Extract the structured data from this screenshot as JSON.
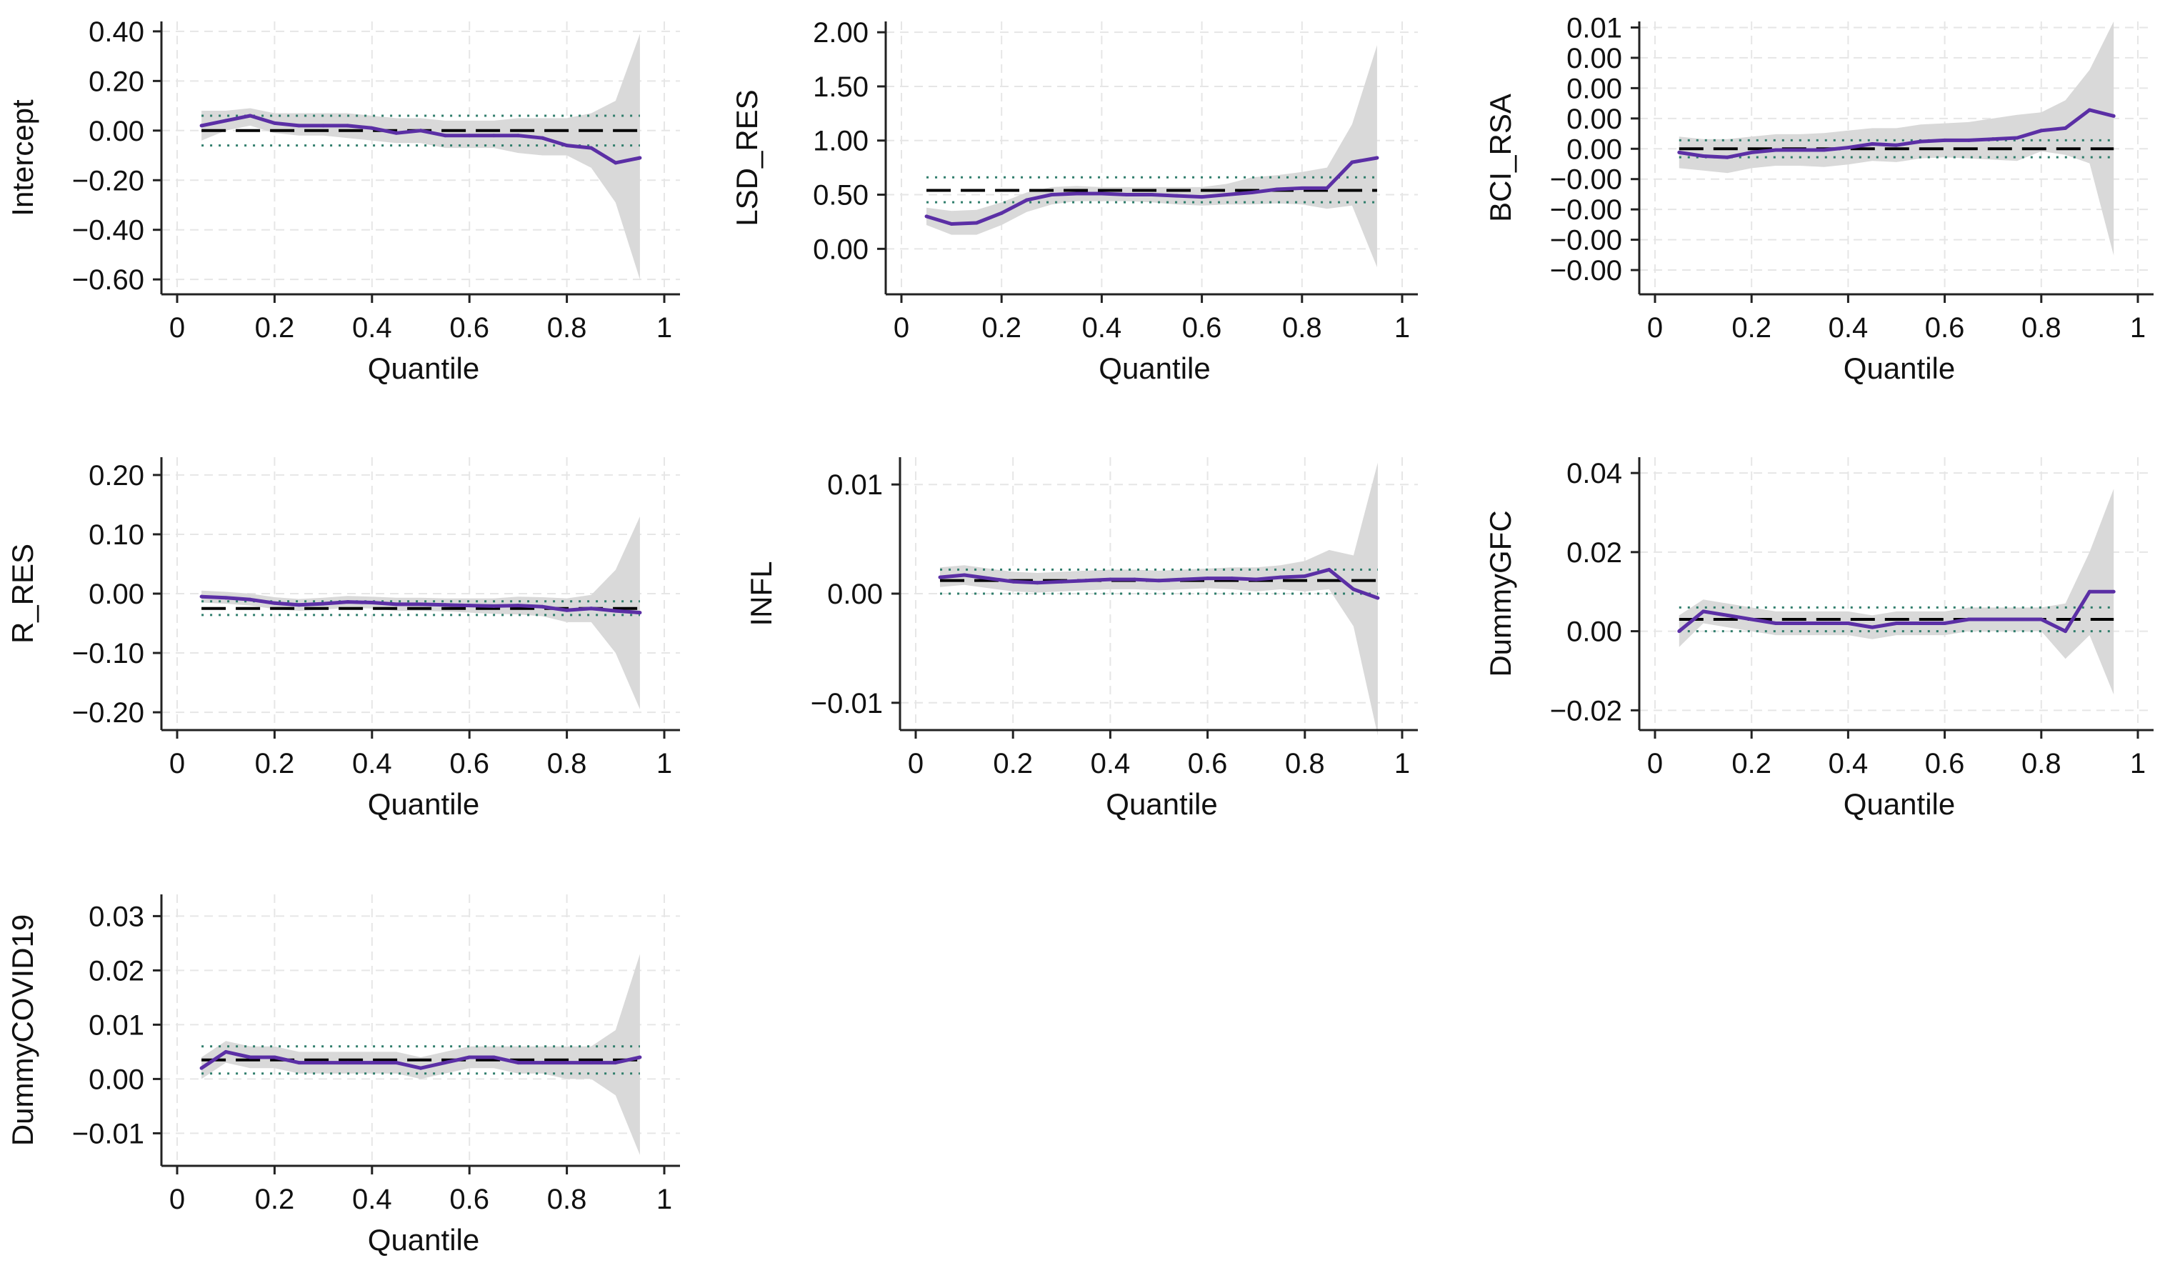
{
  "figure": {
    "xlabel": "Quantile",
    "x_ticks": [
      0,
      0.2,
      0.4,
      0.6,
      0.8,
      1
    ],
    "x_tick_labels": [
      "0",
      "0.2",
      "0.4",
      "0.6",
      "0.8",
      "1"
    ],
    "quantiles": [
      0.05,
      0.1,
      0.15,
      0.2,
      0.25,
      0.3,
      0.35,
      0.4,
      0.45,
      0.5,
      0.55,
      0.6,
      0.65,
      0.7,
      0.75,
      0.8,
      0.85,
      0.9,
      0.95
    ],
    "colors": {
      "quantile_line": "#5b2fa5",
      "ci_band": "#d9d9d9",
      "ols_line": "#000000",
      "ols_ci_line": "#2f7d6b",
      "grid": "#e6e6e6",
      "axis": "#222222"
    }
  },
  "chart_data": [
    {
      "type": "line",
      "title": "",
      "ylabel": "Intercept",
      "xlabel": "Quantile",
      "xlim": [
        0,
        1
      ],
      "ylim": [
        -0.66,
        0.44
      ],
      "y_ticks": [
        0.4,
        0.2,
        0.0,
        -0.2,
        -0.4,
        -0.6
      ],
      "y_tick_labels": [
        "0.40",
        "0.20",
        "0.00",
        "−0.20",
        "−0.40",
        "−0.60"
      ],
      "series": [
        {
          "name": "Quantile estimate",
          "values": [
            0.02,
            0.04,
            0.06,
            0.03,
            0.02,
            0.02,
            0.02,
            0.01,
            -0.01,
            0.0,
            -0.02,
            -0.02,
            -0.02,
            -0.02,
            -0.03,
            -0.06,
            -0.07,
            -0.13,
            -0.11
          ]
        },
        {
          "name": "CI upper",
          "values": [
            0.08,
            0.08,
            0.09,
            0.07,
            0.07,
            0.07,
            0.07,
            0.06,
            0.05,
            0.05,
            0.04,
            0.04,
            0.04,
            0.05,
            0.05,
            0.05,
            0.07,
            0.12,
            0.39
          ]
        },
        {
          "name": "CI lower",
          "values": [
            -0.04,
            0.0,
            0.02,
            -0.01,
            -0.02,
            -0.02,
            -0.03,
            -0.04,
            -0.05,
            -0.05,
            -0.07,
            -0.07,
            -0.07,
            -0.09,
            -0.1,
            -0.1,
            -0.15,
            -0.29,
            -0.6
          ]
        }
      ],
      "ols": {
        "coef": 0.0,
        "ci": [
          -0.06,
          0.06
        ]
      }
    },
    {
      "type": "line",
      "title": "",
      "ylabel": "LSD_RES",
      "xlabel": "Quantile",
      "xlim": [
        0,
        1
      ],
      "ylim": [
        -0.42,
        2.1
      ],
      "y_ticks": [
        2.0,
        1.5,
        1.0,
        0.5,
        0.0
      ],
      "y_tick_labels": [
        "2.00",
        "1.50",
        "1.00",
        "0.50",
        "0.00"
      ],
      "series": [
        {
          "name": "Quantile estimate",
          "values": [
            0.3,
            0.23,
            0.24,
            0.33,
            0.45,
            0.5,
            0.51,
            0.51,
            0.5,
            0.5,
            0.49,
            0.48,
            0.5,
            0.52,
            0.55,
            0.56,
            0.56,
            0.8,
            0.84
          ]
        },
        {
          "name": "CI upper",
          "values": [
            0.38,
            0.35,
            0.36,
            0.43,
            0.52,
            0.57,
            0.58,
            0.57,
            0.57,
            0.57,
            0.57,
            0.57,
            0.6,
            0.66,
            0.68,
            0.71,
            0.75,
            1.15,
            1.88
          ]
        },
        {
          "name": "CI lower",
          "values": [
            0.22,
            0.13,
            0.13,
            0.22,
            0.34,
            0.41,
            0.44,
            0.44,
            0.44,
            0.43,
            0.41,
            0.4,
            0.41,
            0.41,
            0.42,
            0.41,
            0.37,
            0.4,
            -0.17
          ]
        }
      ],
      "ols": {
        "coef": 0.54,
        "ci": [
          0.43,
          0.66
        ]
      }
    },
    {
      "type": "line",
      "title": "",
      "ylabel": "BCI_RSA",
      "xlabel": "Quantile",
      "xlim": [
        0,
        1
      ],
      "ylim": [
        -0.012,
        0.0105
      ],
      "y_ticks": [
        0.01,
        0.0075,
        0.005,
        0.0025,
        0.0,
        -0.0025,
        -0.005,
        -0.0075,
        -0.01
      ],
      "y_tick_labels": [
        "0.01",
        "0.00",
        "0.00",
        "0.00",
        "0.00",
        "−0.00",
        "−0.00",
        "−0.00",
        "−0.00"
      ],
      "series": [
        {
          "name": "Quantile estimate",
          "values": [
            -0.0003,
            -0.0006,
            -0.0007,
            -0.0003,
            -0.0001,
            -0.0001,
            -0.0001,
            0.0001,
            0.0004,
            0.0003,
            0.0006,
            0.0007,
            0.0007,
            0.0008,
            0.0009,
            0.0015,
            0.0017,
            0.0032,
            0.0027
          ]
        },
        {
          "name": "CI upper",
          "values": [
            0.001,
            0.0008,
            0.0008,
            0.001,
            0.0012,
            0.0012,
            0.0013,
            0.0015,
            0.0017,
            0.0017,
            0.002,
            0.0021,
            0.0022,
            0.0025,
            0.0028,
            0.003,
            0.004,
            0.0065,
            0.0105
          ]
        },
        {
          "name": "CI lower",
          "values": [
            -0.0016,
            -0.0018,
            -0.002,
            -0.0016,
            -0.0014,
            -0.0014,
            -0.0015,
            -0.0013,
            -0.001,
            -0.0011,
            -0.0008,
            -0.0007,
            -0.0008,
            -0.0009,
            -0.001,
            -0.0002,
            -0.0005,
            -0.0012,
            -0.0088
          ]
        }
      ],
      "ols": {
        "coef": 0.0,
        "ci": [
          -0.0007,
          0.0007
        ]
      }
    },
    {
      "type": "line",
      "title": "",
      "ylabel": "R_RES",
      "xlabel": "Quantile",
      "xlim": [
        0,
        1
      ],
      "ylim": [
        -0.23,
        0.23
      ],
      "y_ticks": [
        0.2,
        0.1,
        0.0,
        -0.1,
        -0.2
      ],
      "y_tick_labels": [
        "0.20",
        "0.10",
        "0.00",
        "−0.10",
        "−0.20"
      ],
      "series": [
        {
          "name": "Quantile estimate",
          "values": [
            -0.005,
            -0.007,
            -0.01,
            -0.016,
            -0.019,
            -0.017,
            -0.014,
            -0.015,
            -0.018,
            -0.018,
            -0.019,
            -0.02,
            -0.021,
            -0.02,
            -0.022,
            -0.028,
            -0.025,
            -0.029,
            -0.032
          ]
        },
        {
          "name": "CI upper",
          "values": [
            0.005,
            0.003,
            0.0,
            -0.006,
            -0.009,
            -0.007,
            -0.004,
            -0.005,
            -0.007,
            -0.007,
            -0.008,
            -0.008,
            -0.008,
            -0.005,
            -0.006,
            -0.008,
            -0.002,
            0.04,
            0.13
          ]
        },
        {
          "name": "CI lower",
          "values": [
            -0.015,
            -0.017,
            -0.02,
            -0.026,
            -0.029,
            -0.027,
            -0.024,
            -0.025,
            -0.029,
            -0.029,
            -0.03,
            -0.032,
            -0.034,
            -0.035,
            -0.038,
            -0.048,
            -0.048,
            -0.1,
            -0.195
          ]
        }
      ],
      "ols": {
        "coef": -0.025,
        "ci": [
          -0.036,
          -0.013
        ]
      }
    },
    {
      "type": "line",
      "title": "",
      "ylabel": "INFL",
      "xlabel": "Quantile",
      "xlim": [
        0,
        1
      ],
      "ylim": [
        -0.0125,
        0.0125
      ],
      "y_ticks": [
        0.01,
        0.0,
        -0.01
      ],
      "y_tick_labels": [
        "0.01",
        "0.00",
        "−0.01"
      ],
      "series": [
        {
          "name": "Quantile estimate",
          "values": [
            0.0015,
            0.0017,
            0.0014,
            0.0011,
            0.001,
            0.0011,
            0.0012,
            0.0013,
            0.0013,
            0.0012,
            0.0013,
            0.0014,
            0.0014,
            0.0013,
            0.0015,
            0.0016,
            0.0022,
            0.0004,
            -0.0004
          ]
        },
        {
          "name": "CI upper",
          "values": [
            0.0024,
            0.0026,
            0.0023,
            0.002,
            0.0019,
            0.002,
            0.0021,
            0.0022,
            0.0022,
            0.0021,
            0.0022,
            0.0023,
            0.0024,
            0.0024,
            0.0026,
            0.003,
            0.004,
            0.0035,
            0.012
          ]
        },
        {
          "name": "CI lower",
          "values": [
            0.0006,
            0.0008,
            0.0005,
            0.0002,
            0.0001,
            0.0002,
            0.0003,
            0.0004,
            0.0004,
            0.0003,
            0.0004,
            0.0005,
            0.0004,
            0.0002,
            0.0004,
            0.0002,
            0.0004,
            -0.003,
            -0.013
          ]
        }
      ],
      "ols": {
        "coef": 0.0012,
        "ci": [
          0.0,
          0.0022
        ]
      }
    },
    {
      "type": "line",
      "title": "",
      "ylabel": "DummyGFC",
      "xlabel": "Quantile",
      "xlim": [
        0,
        1
      ],
      "ylim": [
        -0.025,
        0.044
      ],
      "y_ticks": [
        0.04,
        0.02,
        0.0,
        -0.02
      ],
      "y_tick_labels": [
        "0.04",
        "0.02",
        "0.00",
        "−0.02"
      ],
      "series": [
        {
          "name": "Quantile estimate",
          "values": [
            0.0,
            0.005,
            0.004,
            0.003,
            0.002,
            0.002,
            0.002,
            0.002,
            0.001,
            0.002,
            0.002,
            0.002,
            0.003,
            0.003,
            0.003,
            0.003,
            0.0,
            0.01,
            0.01
          ]
        },
        {
          "name": "CI upper",
          "values": [
            0.004,
            0.008,
            0.007,
            0.006,
            0.005,
            0.005,
            0.005,
            0.005,
            0.004,
            0.005,
            0.005,
            0.005,
            0.006,
            0.006,
            0.006,
            0.006,
            0.007,
            0.02,
            0.036
          ]
        },
        {
          "name": "CI lower",
          "values": [
            -0.004,
            0.002,
            0.001,
            0.0,
            -0.001,
            -0.001,
            -0.001,
            -0.001,
            -0.002,
            -0.001,
            -0.001,
            -0.001,
            0.0,
            0.0,
            0.0,
            0.0,
            -0.007,
            -0.001,
            -0.016
          ]
        }
      ],
      "ols": {
        "coef": 0.003,
        "ci": [
          0.0,
          0.006
        ]
      }
    },
    {
      "type": "line",
      "title": "",
      "ylabel": "DummyCOVID19",
      "xlabel": "Quantile",
      "xlim": [
        0,
        1
      ],
      "ylim": [
        -0.016,
        0.034
      ],
      "y_ticks": [
        0.03,
        0.02,
        0.01,
        0.0,
        -0.01
      ],
      "y_tick_labels": [
        "0.03",
        "0.02",
        "0.01",
        "0.00",
        "−0.01"
      ],
      "series": [
        {
          "name": "Quantile estimate",
          "values": [
            0.002,
            0.005,
            0.004,
            0.004,
            0.003,
            0.003,
            0.003,
            0.003,
            0.003,
            0.002,
            0.003,
            0.004,
            0.004,
            0.003,
            0.003,
            0.003,
            0.003,
            0.003,
            0.004
          ]
        },
        {
          "name": "CI upper",
          "values": [
            0.004,
            0.007,
            0.006,
            0.006,
            0.005,
            0.005,
            0.005,
            0.005,
            0.005,
            0.004,
            0.005,
            0.006,
            0.006,
            0.006,
            0.006,
            0.006,
            0.006,
            0.009,
            0.023
          ]
        },
        {
          "name": "CI lower",
          "values": [
            0.0,
            0.003,
            0.002,
            0.002,
            0.001,
            0.001,
            0.001,
            0.001,
            0.001,
            0.0,
            0.001,
            0.002,
            0.002,
            0.001,
            0.001,
            0.0,
            0.0,
            -0.003,
            -0.014
          ]
        }
      ],
      "ols": {
        "coef": 0.0035,
        "ci": [
          0.001,
          0.006
        ]
      }
    }
  ]
}
